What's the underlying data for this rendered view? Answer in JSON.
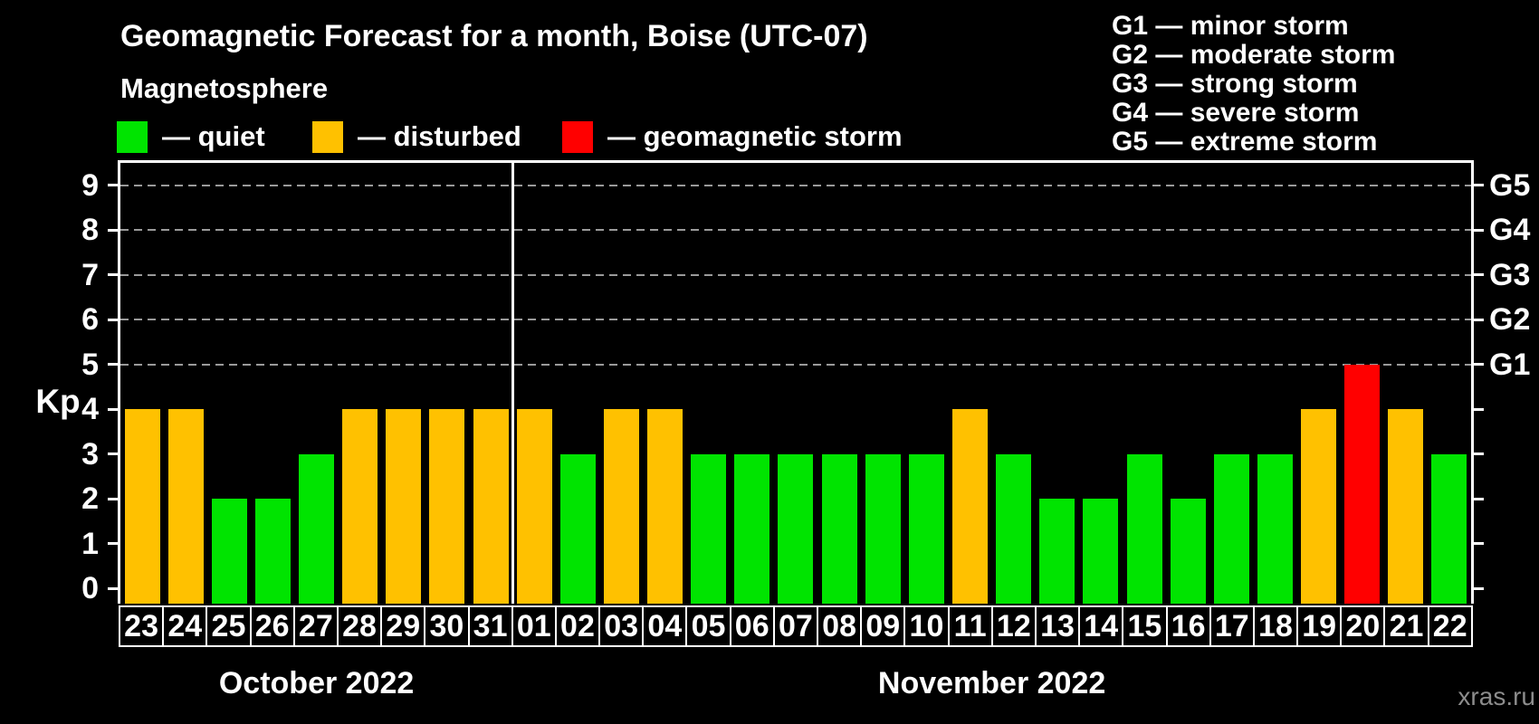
{
  "title": "Geomagnetic Forecast for a month, Boise (UTC-07)",
  "legend": {
    "title": "Magnetosphere",
    "items": [
      {
        "key": "quiet",
        "label": "— quiet",
        "color": "#00e400"
      },
      {
        "key": "disturbed",
        "label": "— disturbed",
        "color": "#ffc100"
      },
      {
        "key": "storm",
        "label": "— geomagnetic storm",
        "color": "#ff0000"
      }
    ]
  },
  "g_scale_legend": [
    "G1 — minor storm",
    "G2 — moderate storm",
    "G3 — strong storm",
    "G4 — severe storm",
    "G5 — extreme storm"
  ],
  "watermark": "xras.ru",
  "colors": {
    "background": "#000000",
    "axis": "#ffffff",
    "grid": "#9a9a9a",
    "watermark_text": "#8c8c8c"
  },
  "chart_data": {
    "type": "bar",
    "ylabel": "Kp",
    "ylim": [
      0,
      9
    ],
    "y_ticks": [
      0,
      1,
      2,
      3,
      4,
      5,
      6,
      7,
      8,
      9
    ],
    "gridlines_at": [
      5,
      6,
      7,
      8,
      9
    ],
    "grid_style": "dashed horizontal lines at storm levels only",
    "legend_position": "top-left",
    "right_axis": [
      {
        "level": 5,
        "label": "G1"
      },
      {
        "level": 6,
        "label": "G2"
      },
      {
        "level": 7,
        "label": "G3"
      },
      {
        "level": 8,
        "label": "G4"
      },
      {
        "level": 9,
        "label": "G5"
      }
    ],
    "months": [
      {
        "label": "October 2022",
        "days": [
          {
            "day": "23",
            "kp": 4,
            "status": "disturbed"
          },
          {
            "day": "24",
            "kp": 4,
            "status": "disturbed"
          },
          {
            "day": "25",
            "kp": 2,
            "status": "quiet"
          },
          {
            "day": "26",
            "kp": 2,
            "status": "quiet"
          },
          {
            "day": "27",
            "kp": 3,
            "status": "quiet"
          },
          {
            "day": "28",
            "kp": 4,
            "status": "disturbed"
          },
          {
            "day": "29",
            "kp": 4,
            "status": "disturbed"
          },
          {
            "day": "30",
            "kp": 4,
            "status": "disturbed"
          },
          {
            "day": "31",
            "kp": 4,
            "status": "disturbed"
          }
        ]
      },
      {
        "label": "November 2022",
        "days": [
          {
            "day": "01",
            "kp": 4,
            "status": "disturbed"
          },
          {
            "day": "02",
            "kp": 3,
            "status": "quiet"
          },
          {
            "day": "03",
            "kp": 4,
            "status": "disturbed"
          },
          {
            "day": "04",
            "kp": 4,
            "status": "disturbed"
          },
          {
            "day": "05",
            "kp": 3,
            "status": "quiet"
          },
          {
            "day": "06",
            "kp": 3,
            "status": "quiet"
          },
          {
            "day": "07",
            "kp": 3,
            "status": "quiet"
          },
          {
            "day": "08",
            "kp": 3,
            "status": "quiet"
          },
          {
            "day": "09",
            "kp": 3,
            "status": "quiet"
          },
          {
            "day": "10",
            "kp": 3,
            "status": "quiet"
          },
          {
            "day": "11",
            "kp": 4,
            "status": "disturbed"
          },
          {
            "day": "12",
            "kp": 3,
            "status": "quiet"
          },
          {
            "day": "13",
            "kp": 2,
            "status": "quiet"
          },
          {
            "day": "14",
            "kp": 2,
            "status": "quiet"
          },
          {
            "day": "15",
            "kp": 3,
            "status": "quiet"
          },
          {
            "day": "16",
            "kp": 2,
            "status": "quiet"
          },
          {
            "day": "17",
            "kp": 3,
            "status": "quiet"
          },
          {
            "day": "18",
            "kp": 3,
            "status": "quiet"
          },
          {
            "day": "19",
            "kp": 4,
            "status": "disturbed"
          },
          {
            "day": "20",
            "kp": 5,
            "status": "storm"
          },
          {
            "day": "21",
            "kp": 4,
            "status": "disturbed"
          },
          {
            "day": "22",
            "kp": 3,
            "status": "quiet"
          }
        ]
      }
    ]
  }
}
